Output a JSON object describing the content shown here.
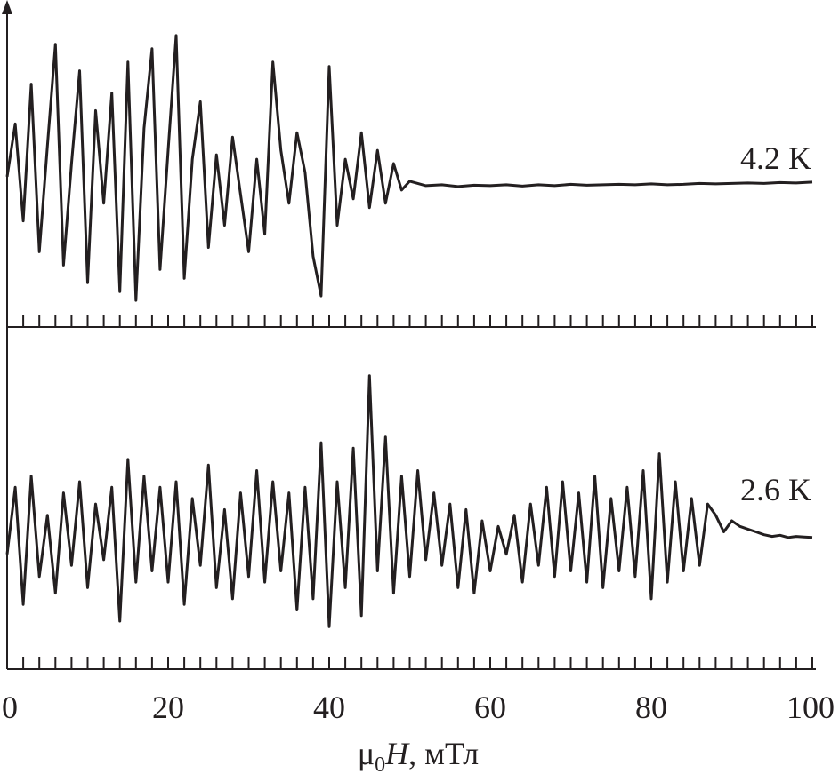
{
  "chart_data": {
    "type": "line",
    "xlabel_prefix": "μ",
    "xlabel_sub": "0",
    "xlabel_var": "H",
    "xlabel_unit": ", мТл",
    "xlim": [
      0,
      100
    ],
    "x_ticks": [
      "0",
      "20",
      "40",
      "60",
      "80",
      "100"
    ],
    "minor_tick_step": 2,
    "line_color": "#231f20",
    "series": [
      {
        "name": "4.2 K",
        "x": [
          0,
          1,
          2,
          3,
          4,
          5,
          6,
          7,
          8,
          9,
          10,
          11,
          12,
          13,
          14,
          15,
          16,
          17,
          18,
          19,
          20,
          21,
          22,
          23,
          24,
          25,
          26,
          27,
          28,
          29,
          30,
          31,
          32,
          33,
          34,
          35,
          36,
          37,
          38,
          39,
          40,
          41,
          42,
          43,
          44,
          45,
          46,
          47,
          48,
          49,
          50,
          51,
          52,
          54,
          56,
          58,
          60,
          62,
          64,
          66,
          68,
          70,
          72,
          74,
          76,
          78,
          80,
          82,
          84,
          86,
          88,
          90,
          92,
          94,
          96,
          98,
          100
        ],
        "y": [
          0.2,
          1.4,
          -0.8,
          2.3,
          -1.5,
          0.9,
          3.2,
          -1.8,
          0.5,
          2.6,
          -2.2,
          1.7,
          -0.4,
          2.1,
          -2.4,
          2.8,
          -2.6,
          1.3,
          3.1,
          -1.9,
          0.8,
          3.4,
          -2.1,
          0.6,
          1.9,
          -1.4,
          0.7,
          -0.9,
          1.1,
          -0.2,
          -1.5,
          0.6,
          -1.1,
          2.8,
          0.8,
          -0.4,
          1.2,
          0.3,
          -1.6,
          -2.5,
          2.7,
          -0.9,
          0.6,
          -0.3,
          1.2,
          -0.5,
          0.8,
          -0.4,
          0.5,
          -0.1,
          0.1,
          0.05,
          0,
          0.02,
          -0.02,
          0.01,
          0,
          0.02,
          -0.01,
          0.02,
          0,
          0.03,
          0.01,
          0.02,
          0.03,
          0.02,
          0.04,
          0.02,
          0.03,
          0.05,
          0.04,
          0.05,
          0.06,
          0.05,
          0.07,
          0.06,
          0.08
        ],
        "ylim": [
          -3,
          3.8
        ]
      },
      {
        "name": "2.6 K",
        "x": [
          0,
          1,
          2,
          3,
          4,
          5,
          6,
          7,
          8,
          9,
          10,
          11,
          12,
          13,
          14,
          15,
          16,
          17,
          18,
          19,
          20,
          21,
          22,
          23,
          24,
          25,
          26,
          27,
          28,
          29,
          30,
          31,
          32,
          33,
          34,
          35,
          36,
          37,
          38,
          39,
          40,
          41,
          42,
          43,
          44,
          45,
          46,
          47,
          48,
          49,
          50,
          51,
          52,
          53,
          54,
          55,
          56,
          57,
          58,
          59,
          60,
          61,
          62,
          63,
          64,
          65,
          66,
          67,
          68,
          69,
          70,
          71,
          72,
          73,
          74,
          75,
          76,
          77,
          78,
          79,
          80,
          81,
          82,
          83,
          84,
          85,
          86,
          87,
          88,
          89,
          90,
          91,
          92,
          93,
          94,
          95,
          96,
          97,
          98,
          99,
          100
        ],
        "y": [
          -0.3,
          0.9,
          -1.2,
          1.1,
          -0.7,
          0.4,
          -1.0,
          0.8,
          -0.5,
          1.0,
          -0.9,
          0.6,
          -0.4,
          0.9,
          -1.5,
          1.4,
          -0.8,
          1.1,
          -0.6,
          0.9,
          -0.8,
          1.0,
          -1.2,
          0.7,
          -0.5,
          1.3,
          -0.9,
          0.5,
          -1.1,
          0.8,
          -0.7,
          1.2,
          -0.8,
          1.0,
          -0.6,
          0.8,
          -1.3,
          0.9,
          -1.1,
          1.7,
          -1.6,
          1.0,
          -0.9,
          1.6,
          -1.4,
          2.9,
          -0.6,
          1.8,
          -1.0,
          1.1,
          -0.7,
          1.2,
          -0.4,
          0.8,
          -0.5,
          0.6,
          -0.9,
          0.5,
          -1.0,
          0.3,
          -0.6,
          0.2,
          -0.3,
          0.4,
          -0.8,
          0.6,
          -0.5,
          0.9,
          -0.7,
          1.0,
          -0.6,
          0.8,
          -0.8,
          1.1,
          -0.9,
          0.7,
          -0.6,
          0.9,
          -0.7,
          1.2,
          -1.1,
          1.5,
          -0.8,
          1.0,
          -0.6,
          0.7,
          -0.5,
          0.6,
          0.4,
          0.1,
          0.3,
          0.2,
          0.15,
          0.1,
          0.05,
          0.02,
          0.04,
          0.0,
          0.02,
          0.01,
          0.0
        ],
        "ylim": [
          -2.2,
          3.5
        ]
      }
    ]
  }
}
